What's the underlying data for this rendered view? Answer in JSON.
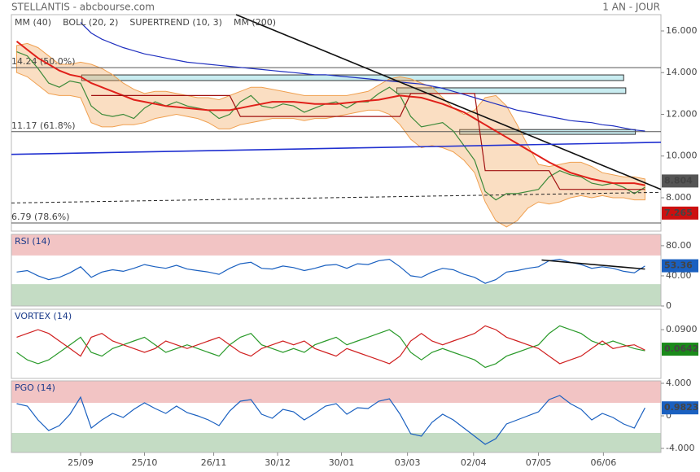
{
  "header": {
    "title": "STELLANTIS - abcbourse.com",
    "period": "1 AN - JOUR"
  },
  "x_axis": {
    "xlim": [
      -0.5,
      60.5
    ],
    "xticks": [
      {
        "value": 6,
        "label": "25/09"
      },
      {
        "value": 12,
        "label": "25/10"
      },
      {
        "value": 18.5,
        "label": "26/11"
      },
      {
        "value": 24.5,
        "label": "30/12"
      },
      {
        "value": 30.5,
        "label": "30/01"
      },
      {
        "value": 36.7,
        "label": "03/03"
      },
      {
        "value": 42.9,
        "label": "02/04"
      },
      {
        "value": 49,
        "label": "07/05"
      },
      {
        "value": 55.1,
        "label": "06/06"
      }
    ]
  },
  "chart_data": [
    {
      "type": "line",
      "ylim": [
        6.4,
        16.78
      ],
      "yticks": [
        {
          "value": 16,
          "label": "16.000"
        },
        {
          "value": 14,
          "label": "14.000"
        },
        {
          "value": 12,
          "label": "12.000"
        },
        {
          "value": 10,
          "label": "10.000"
        },
        {
          "value": 8,
          "label": "8.000"
        }
      ],
      "price": {
        "color": "#3d8a3a",
        "values": [
          15.0,
          14.8,
          14.2,
          13.5,
          13.3,
          13.6,
          13.5,
          12.4,
          12.0,
          11.9,
          12.0,
          11.8,
          12.3,
          12.6,
          12.4,
          12.6,
          12.4,
          12.3,
          12.2,
          11.8,
          12.0,
          12.6,
          12.9,
          12.4,
          12.3,
          12.5,
          12.4,
          12.1,
          12.3,
          12.5,
          12.6,
          12.3,
          12.6,
          12.6,
          13.0,
          13.3,
          12.9,
          11.9,
          11.4,
          11.5,
          11.6,
          11.2,
          10.5,
          9.8,
          8.3,
          7.9,
          8.2,
          8.2,
          8.3,
          8.4,
          9.0,
          9.3,
          9.1,
          9.0,
          8.7,
          8.6,
          8.7,
          8.5,
          8.2,
          8.5
        ]
      },
      "band": {
        "name": "BOLL (20, 2)",
        "color": "#f0a050",
        "upper": [
          15.3,
          15.4,
          15.2,
          14.8,
          14.4,
          14.4,
          14.5,
          14.4,
          14.2,
          13.9,
          13.5,
          13.2,
          13.0,
          13.1,
          13.1,
          13.0,
          12.9,
          12.8,
          12.8,
          12.7,
          12.9,
          13.1,
          13.3,
          13.3,
          13.2,
          13.1,
          13.0,
          12.9,
          12.9,
          12.9,
          12.9,
          12.9,
          13.0,
          13.1,
          13.4,
          13.7,
          13.8,
          13.7,
          13.5,
          13.3,
          12.8,
          12.3,
          12.0,
          12.2,
          12.8,
          12.9,
          12.4,
          11.5,
          10.5,
          9.6,
          9.5,
          9.6,
          9.7,
          9.7,
          9.5,
          9.2,
          9.1,
          9.0,
          9.0,
          8.9
        ],
        "lower": [
          14.0,
          13.8,
          13.4,
          13.0,
          12.9,
          12.9,
          12.8,
          11.6,
          11.4,
          11.4,
          11.5,
          11.5,
          11.6,
          11.8,
          11.9,
          12.0,
          11.9,
          11.8,
          11.6,
          11.3,
          11.3,
          11.5,
          11.6,
          11.7,
          11.8,
          11.8,
          11.8,
          11.7,
          11.8,
          11.8,
          11.9,
          12.0,
          12.1,
          12.2,
          12.2,
          12.0,
          11.5,
          10.8,
          10.4,
          10.5,
          10.4,
          10.2,
          9.8,
          9.2,
          7.8,
          6.9,
          6.6,
          6.9,
          7.5,
          7.8,
          7.7,
          7.8,
          8.0,
          8.1,
          8.0,
          8.1,
          8.0,
          8.0,
          7.9,
          7.9
        ]
      },
      "series": [
        {
          "name": "MM (40)",
          "color": "#e0201a",
          "values": [
            15.5,
            15.1,
            14.7,
            14.4,
            14.1,
            13.9,
            13.8,
            13.5,
            13.3,
            13.1,
            12.9,
            12.7,
            12.6,
            12.5,
            12.4,
            12.35,
            12.3,
            12.25,
            12.2,
            12.2,
            12.2,
            12.3,
            12.4,
            12.5,
            12.6,
            12.6,
            12.6,
            12.55,
            12.5,
            12.5,
            12.5,
            12.55,
            12.6,
            12.65,
            12.7,
            12.8,
            12.9,
            12.85,
            12.8,
            12.65,
            12.5,
            12.3,
            12.1,
            11.8,
            11.5,
            11.2,
            10.9,
            10.6,
            10.3,
            10.0,
            9.7,
            9.45,
            9.2,
            9.05,
            8.9,
            8.8,
            8.7,
            8.7,
            8.7,
            8.6
          ]
        },
        {
          "name": "SUPERTREND (10, 3)",
          "color": "#a01010",
          "values": [
            null,
            null,
            null,
            null,
            null,
            null,
            null,
            12.9,
            12.9,
            12.9,
            12.9,
            12.9,
            12.9,
            12.9,
            12.9,
            12.9,
            12.9,
            12.9,
            12.9,
            12.9,
            12.9,
            11.9,
            11.9,
            11.9,
            11.9,
            11.9,
            11.9,
            11.9,
            11.9,
            11.9,
            11.9,
            11.9,
            11.9,
            11.9,
            11.9,
            11.9,
            11.9,
            13.0,
            13.0,
            13.0,
            13.0,
            13.0,
            13.0,
            13.0,
            9.3,
            9.3,
            9.3,
            9.3,
            9.3,
            9.3,
            9.3,
            8.4,
            8.4,
            8.4,
            8.4,
            8.4,
            8.4,
            8.4,
            8.4,
            8.4
          ]
        },
        {
          "name": "MM (200)",
          "color": "#2030c0",
          "values": [
            null,
            null,
            null,
            null,
            null,
            null,
            16.4,
            15.9,
            15.6,
            15.4,
            15.2,
            15.05,
            14.9,
            14.8,
            14.7,
            14.6,
            14.5,
            14.45,
            14.4,
            14.35,
            14.3,
            14.25,
            14.2,
            14.15,
            14.1,
            14.05,
            14.0,
            13.95,
            13.9,
            13.9,
            13.85,
            13.8,
            13.75,
            13.7,
            13.65,
            13.6,
            13.55,
            13.5,
            13.45,
            13.35,
            13.25,
            13.1,
            12.95,
            12.8,
            12.65,
            12.5,
            12.35,
            12.2,
            12.1,
            12.0,
            11.9,
            11.8,
            11.7,
            11.65,
            11.6,
            11.5,
            11.45,
            11.35,
            11.25,
            11.2
          ]
        }
      ],
      "levels": [
        {
          "value": 14.24,
          "label": "14.24 (50.0%)"
        },
        {
          "value": 11.17,
          "label": "11.17 (61.8%)"
        },
        {
          "value": 6.79,
          "label": "6.79 (78.6%)"
        }
      ],
      "zones": [
        {
          "x": [
            6.1,
            57.0
          ],
          "y": [
            13.62,
            13.89
          ],
          "color": "#c8ecf0"
        },
        {
          "x": [
            35.7,
            57.2
          ],
          "y": [
            13.0,
            13.27
          ],
          "color": "#c8ecf0"
        },
        {
          "x": [
            41.6,
            58.1
          ],
          "y": [
            11.04,
            11.27
          ],
          "color": "#c8ecf0"
        }
      ],
      "trendlines": [
        {
          "x": [
            20.6,
            60.5
          ],
          "y": [
            16.78,
            8.4
          ],
          "color": "#111111",
          "style": "solid"
        },
        {
          "x": [
            -0.5,
            60.5
          ],
          "y": [
            10.08,
            10.66
          ],
          "color": "#2030d0",
          "style": "solid"
        },
        {
          "x": [
            -0.5,
            60.5
          ],
          "y": [
            7.75,
            8.26
          ],
          "color": "#222222",
          "style": "dashed"
        }
      ],
      "last_labels": [
        {
          "value": 8.804,
          "label": "8.804",
          "color": "#555555"
        },
        {
          "value": 7.265,
          "label": "7.265",
          "color": "#cc1010"
        }
      ]
    },
    {
      "type": "line",
      "title": "RSI (14)",
      "ylim": [
        0,
        95
      ],
      "yticks": [
        {
          "value": 80,
          "label": "80.00"
        },
        {
          "value": 40,
          "label": "40.00"
        },
        0
      ],
      "bands": [
        {
          "from": 67,
          "to": 95,
          "color": "#f2c4c4"
        },
        {
          "from": 0,
          "to": 29,
          "color": "#c4dcc4"
        }
      ],
      "series": [
        {
          "color": "#1a60c0",
          "values": [
            45,
            47,
            40,
            35,
            38,
            44,
            52,
            38,
            45,
            48,
            46,
            50,
            55,
            52,
            50,
            54,
            49,
            47,
            45,
            42,
            50,
            56,
            58,
            50,
            49,
            53,
            51,
            47,
            50,
            54,
            55,
            50,
            56,
            55,
            60,
            62,
            52,
            40,
            38,
            45,
            50,
            48,
            42,
            38,
            30,
            35,
            45,
            47,
            50,
            52,
            60,
            62,
            58,
            55,
            50,
            52,
            50,
            46,
            44,
            53
          ]
        }
      ],
      "trendlines": [
        {
          "x": [
            49.3,
            59.0
          ],
          "y": [
            61,
            49
          ],
          "color": "#111111",
          "style": "solid"
        }
      ],
      "last_labels": [
        {
          "value": 53.36,
          "label": "53.36",
          "color": "#1a60c0"
        }
      ]
    },
    {
      "type": "line",
      "title": "VORTEX (14)",
      "ylim": [
        0.0255,
        0.117
      ],
      "yticks": [
        {
          "value": 0.09,
          "label": "0.0900"
        }
      ],
      "series": [
        {
          "color": "#2a9a2a",
          "values": [
            0.06,
            0.05,
            0.045,
            0.05,
            0.06,
            0.07,
            0.08,
            0.06,
            0.055,
            0.065,
            0.07,
            0.075,
            0.08,
            0.07,
            0.06,
            0.065,
            0.07,
            0.065,
            0.06,
            0.055,
            0.07,
            0.08,
            0.085,
            0.07,
            0.065,
            0.06,
            0.065,
            0.06,
            0.07,
            0.075,
            0.08,
            0.07,
            0.075,
            0.08,
            0.085,
            0.09,
            0.08,
            0.06,
            0.05,
            0.06,
            0.065,
            0.06,
            0.055,
            0.05,
            0.04,
            0.045,
            0.055,
            0.06,
            0.065,
            0.07,
            0.085,
            0.095,
            0.09,
            0.085,
            0.075,
            0.07,
            0.075,
            0.07,
            0.065,
            0.062
          ]
        },
        {
          "color": "#d02020",
          "values": [
            0.08,
            0.085,
            0.09,
            0.085,
            0.075,
            0.065,
            0.055,
            0.08,
            0.085,
            0.075,
            0.07,
            0.065,
            0.06,
            0.065,
            0.075,
            0.07,
            0.065,
            0.07,
            0.075,
            0.08,
            0.07,
            0.06,
            0.055,
            0.065,
            0.07,
            0.075,
            0.07,
            0.075,
            0.065,
            0.06,
            0.055,
            0.065,
            0.06,
            0.055,
            0.05,
            0.045,
            0.055,
            0.075,
            0.085,
            0.075,
            0.07,
            0.075,
            0.08,
            0.085,
            0.095,
            0.09,
            0.08,
            0.075,
            0.07,
            0.065,
            0.055,
            0.045,
            0.05,
            0.055,
            0.065,
            0.075,
            0.065,
            0.068,
            0.07,
            0.063
          ]
        }
      ],
      "last_labels": [
        {
          "value": 0.0642,
          "label": "0.0642",
          "color": "#1a8a1a"
        }
      ]
    },
    {
      "type": "line",
      "title": "PGO (14)",
      "ylim": [
        -4.5,
        4.3
      ],
      "yticks": [
        {
          "value": 4,
          "label": "4.000"
        },
        0,
        {
          "value": -4,
          "label": "-4.000"
        }
      ],
      "bands": [
        {
          "from": 1.6,
          "to": 4.3,
          "color": "#f2c4c4"
        },
        {
          "from": -4.5,
          "to": -2.1,
          "color": "#c4dcc4"
        }
      ],
      "series": [
        {
          "color": "#1a60c0",
          "values": [
            1.5,
            1.2,
            -0.5,
            -1.8,
            -1.2,
            0.2,
            2.3,
            -1.5,
            -0.5,
            0.3,
            -0.2,
            0.8,
            1.6,
            0.9,
            0.3,
            1.2,
            0.4,
            0,
            -0.5,
            -1.2,
            0.6,
            1.8,
            2.0,
            0.2,
            -0.3,
            0.8,
            0.5,
            -0.5,
            0.3,
            1.2,
            1.5,
            0.2,
            1.0,
            0.9,
            1.8,
            2.1,
            0.2,
            -2.2,
            -2.5,
            -0.8,
            0.2,
            -0.5,
            -1.5,
            -2.5,
            -3.5,
            -2.8,
            -1,
            -0.5,
            0,
            0.5,
            2.0,
            2.5,
            1.5,
            0.8,
            -0.5,
            0.3,
            -0.2,
            -1.0,
            -1.5,
            0.98
          ]
        }
      ],
      "last_labels": [
        {
          "value": 0.9823,
          "label": "0.9823",
          "color": "#1a60c0"
        }
      ]
    }
  ]
}
